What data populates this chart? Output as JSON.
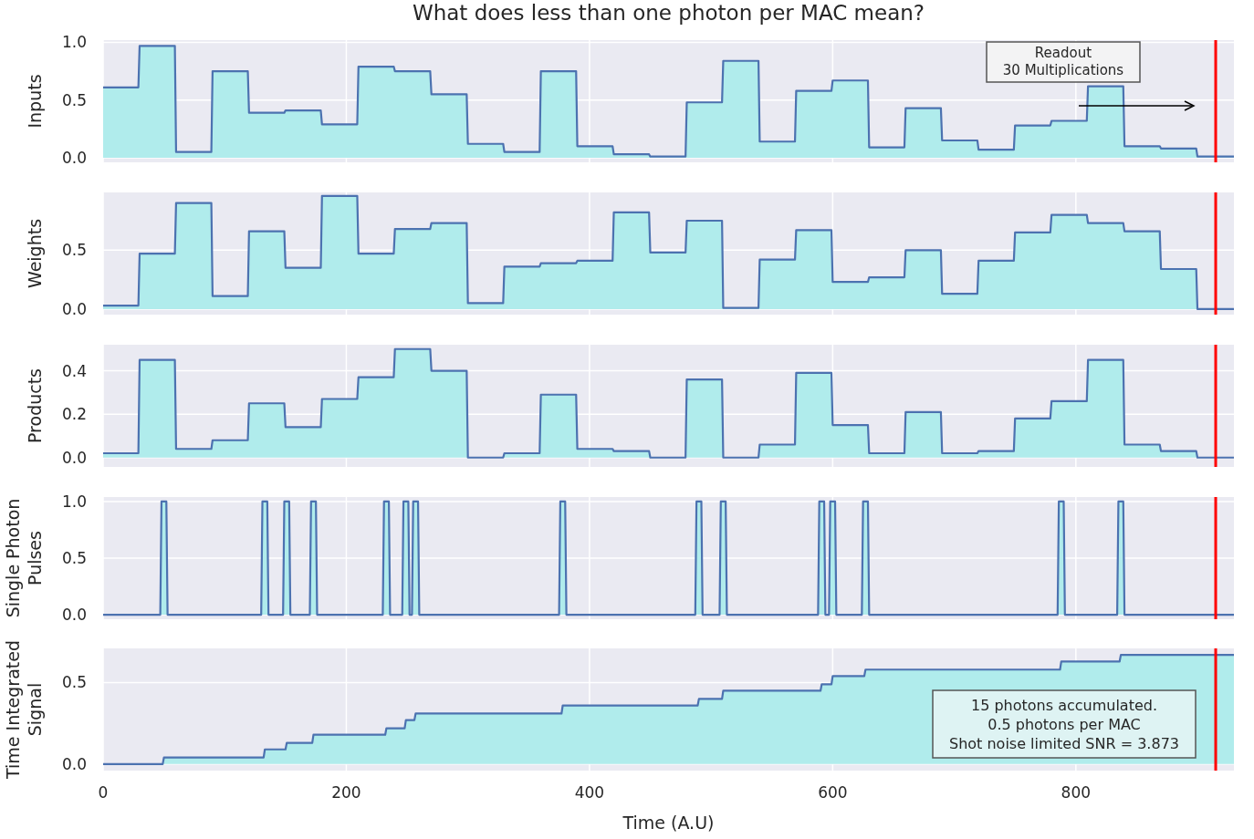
{
  "chart_data": [
    {
      "type": "area",
      "title": "What does less than one photon per MAC mean?",
      "ylabel": "Inputs",
      "color": "#4c72b0",
      "x": [
        0,
        29,
        30,
        59,
        60,
        89,
        90,
        119,
        120,
        149,
        150,
        179,
        180,
        209,
        210,
        239,
        240,
        269,
        270,
        299,
        300,
        329,
        330,
        359,
        360,
        389,
        390,
        419,
        420,
        449,
        450,
        479,
        480,
        509,
        510,
        539,
        540,
        569,
        570,
        599,
        600,
        629,
        630,
        659,
        660,
        689,
        690,
        719,
        720,
        749,
        750,
        779,
        780,
        809,
        810,
        839,
        840,
        869,
        870,
        899,
        900,
        930
      ],
      "values": [
        0.61,
        0.61,
        0.97,
        0.97,
        0.05,
        0.05,
        0.75,
        0.75,
        0.39,
        0.39,
        0.41,
        0.41,
        0.29,
        0.29,
        0.79,
        0.79,
        0.75,
        0.75,
        0.55,
        0.55,
        0.12,
        0.12,
        0.05,
        0.05,
        0.75,
        0.75,
        0.1,
        0.1,
        0.03,
        0.03,
        0.01,
        0.01,
        0.48,
        0.48,
        0.84,
        0.84,
        0.14,
        0.14,
        0.58,
        0.58,
        0.67,
        0.67,
        0.09,
        0.09,
        0.43,
        0.43,
        0.15,
        0.15,
        0.07,
        0.07,
        0.28,
        0.28,
        0.32,
        0.32,
        0.62,
        0.62,
        0.1,
        0.1,
        0.08,
        0.08,
        0.01,
        0.01
      ],
      "xlim": [
        0,
        930
      ],
      "ylim": [
        -0.04,
        1.02
      ],
      "xticks": [
        0,
        200,
        400,
        600,
        800
      ],
      "yticks": [
        {
          "value": 0,
          "label": "0.0"
        },
        {
          "value": 0.5,
          "label": "0.5"
        },
        {
          "value": 1,
          "label": "1.0"
        }
      ],
      "tick_labels": "y",
      "grid": true,
      "ref_lines": [
        {
          "axis": "x",
          "value": 915,
          "color": "#ff0000"
        }
      ],
      "annotations": [
        "Readout\n30 Multiplications"
      ]
    },
    {
      "type": "area",
      "ylabel": "Weights",
      "color": "#4c72b0",
      "x": [
        0,
        29,
        30,
        59,
        60,
        89,
        90,
        119,
        120,
        149,
        150,
        179,
        180,
        209,
        210,
        239,
        240,
        269,
        270,
        299,
        300,
        329,
        330,
        359,
        360,
        389,
        390,
        419,
        420,
        449,
        450,
        479,
        480,
        509,
        510,
        539,
        540,
        569,
        570,
        599,
        600,
        629,
        630,
        659,
        660,
        689,
        690,
        719,
        720,
        749,
        750,
        779,
        780,
        809,
        810,
        839,
        840,
        869,
        870,
        899,
        900,
        930
      ],
      "values": [
        0.03,
        0.03,
        0.47,
        0.47,
        0.9,
        0.9,
        0.11,
        0.11,
        0.66,
        0.66,
        0.35,
        0.35,
        0.96,
        0.96,
        0.47,
        0.47,
        0.68,
        0.68,
        0.73,
        0.73,
        0.05,
        0.05,
        0.36,
        0.36,
        0.39,
        0.39,
        0.41,
        0.41,
        0.82,
        0.82,
        0.48,
        0.48,
        0.75,
        0.75,
        0.01,
        0.01,
        0.42,
        0.42,
        0.67,
        0.67,
        0.23,
        0.23,
        0.27,
        0.27,
        0.5,
        0.5,
        0.13,
        0.13,
        0.41,
        0.41,
        0.65,
        0.65,
        0.8,
        0.8,
        0.73,
        0.73,
        0.66,
        0.66,
        0.34,
        0.34,
        0.0,
        0.0
      ],
      "xlim": [
        0,
        930
      ],
      "ylim": [
        -0.047,
        0.99
      ],
      "xticks": [
        0,
        200,
        400,
        600,
        800
      ],
      "yticks": [
        {
          "value": 0,
          "label": "0.0"
        },
        {
          "value": 0.5,
          "label": "0.5"
        }
      ],
      "tick_labels": "y",
      "grid": true,
      "ref_lines": [
        {
          "axis": "x",
          "value": 915,
          "color": "#ff0000"
        }
      ]
    },
    {
      "type": "area",
      "ylabel": "Products",
      "color": "#4c72b0",
      "x": [
        0,
        29,
        30,
        59,
        60,
        89,
        90,
        119,
        120,
        149,
        150,
        179,
        180,
        209,
        210,
        239,
        240,
        269,
        270,
        299,
        300,
        329,
        330,
        359,
        360,
        389,
        390,
        419,
        420,
        449,
        450,
        479,
        480,
        509,
        510,
        539,
        540,
        569,
        570,
        599,
        600,
        629,
        630,
        659,
        660,
        689,
        690,
        719,
        720,
        749,
        750,
        779,
        780,
        809,
        810,
        839,
        840,
        869,
        870,
        899,
        900,
        930
      ],
      "values": [
        0.02,
        0.02,
        0.45,
        0.45,
        0.04,
        0.04,
        0.08,
        0.08,
        0.25,
        0.25,
        0.14,
        0.14,
        0.27,
        0.27,
        0.37,
        0.37,
        0.5,
        0.5,
        0.4,
        0.4,
        0.0,
        0.0,
        0.02,
        0.02,
        0.29,
        0.29,
        0.04,
        0.04,
        0.03,
        0.03,
        0.0,
        0.0,
        0.36,
        0.36,
        0.0,
        0.0,
        0.06,
        0.06,
        0.39,
        0.39,
        0.15,
        0.15,
        0.02,
        0.02,
        0.21,
        0.21,
        0.02,
        0.02,
        0.03,
        0.03,
        0.18,
        0.18,
        0.26,
        0.26,
        0.45,
        0.45,
        0.06,
        0.06,
        0.03,
        0.03,
        0.0,
        0.0
      ],
      "xlim": [
        0,
        930
      ],
      "ylim": [
        -0.043,
        0.52
      ],
      "xticks": [
        0,
        200,
        400,
        600,
        800
      ],
      "yticks": [
        {
          "value": 0,
          "label": "0.0"
        },
        {
          "value": 0.2,
          "label": "0.2"
        },
        {
          "value": 0.4,
          "label": "0.4"
        }
      ],
      "tick_labels": "y",
      "grid": true,
      "ref_lines": [
        {
          "axis": "x",
          "value": 915,
          "color": "#ff0000"
        }
      ]
    },
    {
      "type": "area",
      "ylabel": "Single Photon\nPulses",
      "color": "#4c72b0",
      "x": [
        0,
        47,
        48,
        52,
        53,
        130,
        131,
        135,
        136,
        148,
        149,
        153,
        154,
        170,
        171,
        175,
        176,
        230,
        231,
        235,
        236,
        246,
        247,
        251,
        252,
        254,
        255,
        259,
        260,
        375,
        376,
        380,
        381,
        487,
        488,
        492,
        493,
        507,
        508,
        512,
        513,
        588,
        589,
        593,
        594,
        597,
        598,
        602,
        603,
        624,
        625,
        629,
        630,
        785,
        786,
        790,
        791,
        834,
        835,
        839,
        840,
        930
      ],
      "values": [
        0,
        0,
        1,
        1,
        0,
        0,
        1,
        1,
        0,
        0,
        1,
        1,
        0,
        0,
        1,
        1,
        0,
        0,
        1,
        1,
        0,
        0,
        1,
        1,
        0,
        0,
        1,
        1,
        0,
        0,
        1,
        1,
        0,
        0,
        1,
        1,
        0,
        0,
        1,
        1,
        0,
        0,
        1,
        1,
        0,
        0,
        1,
        1,
        0,
        0,
        1,
        1,
        0,
        0,
        1,
        1,
        0,
        0,
        1,
        1,
        0,
        0
      ],
      "xlim": [
        0,
        930
      ],
      "ylim": [
        -0.04,
        1.04
      ],
      "xticks": [
        0,
        200,
        400,
        600,
        800
      ],
      "yticks": [
        {
          "value": 0,
          "label": "0.0"
        },
        {
          "value": 0.5,
          "label": "0.5"
        },
        {
          "value": 1,
          "label": "1.0"
        }
      ],
      "tick_labels": "y",
      "grid": true,
      "ref_lines": [
        {
          "axis": "x",
          "value": 915,
          "color": "#ff0000"
        }
      ]
    },
    {
      "type": "area",
      "ylabel": "Time Integrated\nSignal",
      "xlabel": "Time (A.U)",
      "color": "#4c72b0",
      "x": [
        0,
        49,
        50,
        132,
        133,
        150,
        151,
        172,
        173,
        232,
        233,
        248,
        249,
        256,
        257,
        377,
        378,
        489,
        490,
        509,
        510,
        590,
        591,
        599,
        600,
        626,
        627,
        787,
        788,
        836,
        837,
        930
      ],
      "values": [
        0,
        0,
        0.04,
        0.04,
        0.09,
        0.09,
        0.13,
        0.13,
        0.18,
        0.18,
        0.22,
        0.22,
        0.27,
        0.27,
        0.31,
        0.31,
        0.36,
        0.36,
        0.4,
        0.4,
        0.45,
        0.45,
        0.49,
        0.49,
        0.54,
        0.54,
        0.58,
        0.58,
        0.63,
        0.63,
        0.67,
        0.67
      ],
      "xlim": [
        0,
        930
      ],
      "ylim": [
        -0.04,
        0.71
      ],
      "xticks": [
        0,
        200,
        400,
        600,
        800
      ],
      "yticks": [
        {
          "value": 0,
          "label": "0.0"
        },
        {
          "value": 0.5,
          "label": "0.5"
        }
      ],
      "grid": true,
      "ref_lines": [
        {
          "axis": "x",
          "value": 915,
          "color": "#ff0000"
        }
      ],
      "annotations": [
        "15 photons accumulated.\n0.5 photons per MAC\n Shot noise limited SNR = 3.873"
      ]
    }
  ]
}
